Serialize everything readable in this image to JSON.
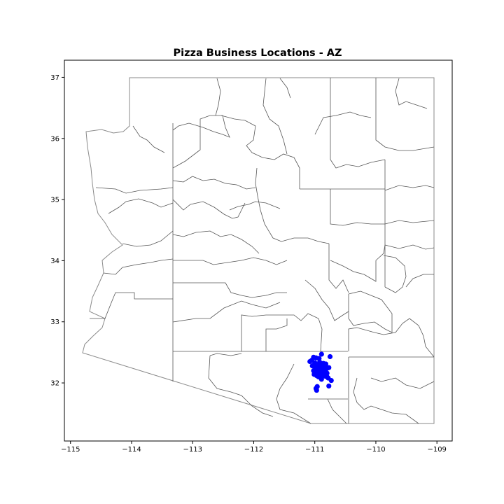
{
  "chart_data": {
    "type": "scatter",
    "title": "Pizza Business Locations - AZ",
    "xlabel": "",
    "ylabel": "",
    "xlim": [
      -115.1,
      -108.75
    ],
    "ylim": [
      31.05,
      37.28
    ],
    "x_ticks": [
      -115,
      -114,
      -113,
      -112,
      -111,
      -110,
      -109
    ],
    "x_tick_labels": [
      "−115",
      "−114",
      "−113",
      "−112",
      "−111",
      "−110",
      "−109"
    ],
    "y_ticks": [
      32,
      33,
      34,
      35,
      36,
      37
    ],
    "y_tick_labels": [
      "32",
      "33",
      "34",
      "35",
      "36",
      "37"
    ],
    "grid": false,
    "marker_color": "#0000ff",
    "boundary_color": "#555555",
    "series": [
      {
        "points": [
          [
            -111.02,
            32.42
          ],
          [
            -110.98,
            32.41
          ],
          [
            -110.93,
            32.4
          ],
          [
            -110.89,
            32.47
          ],
          [
            -110.75,
            32.43
          ],
          [
            -111.08,
            32.35
          ],
          [
            -111.05,
            32.37
          ],
          [
            -111.0,
            32.33
          ],
          [
            -110.97,
            32.3
          ],
          [
            -110.95,
            32.28
          ],
          [
            -110.92,
            32.29
          ],
          [
            -110.9,
            32.26
          ],
          [
            -110.87,
            32.27
          ],
          [
            -110.84,
            32.25
          ],
          [
            -110.8,
            32.24
          ],
          [
            -110.77,
            32.25
          ],
          [
            -110.99,
            32.25
          ],
          [
            -110.96,
            32.22
          ],
          [
            -110.93,
            32.21
          ],
          [
            -110.9,
            32.2
          ],
          [
            -110.87,
            32.19
          ],
          [
            -110.84,
            32.21
          ],
          [
            -110.82,
            32.18
          ],
          [
            -110.8,
            32.16
          ],
          [
            -110.98,
            32.18
          ],
          [
            -110.95,
            32.16
          ],
          [
            -110.92,
            32.14
          ],
          [
            -110.89,
            32.13
          ],
          [
            -110.86,
            32.12
          ],
          [
            -110.83,
            32.11
          ],
          [
            -110.8,
            32.1
          ],
          [
            -110.78,
            32.08
          ],
          [
            -111.01,
            32.14
          ],
          [
            -110.97,
            32.12
          ],
          [
            -110.94,
            32.1
          ],
          [
            -110.91,
            32.09
          ],
          [
            -110.89,
            32.06
          ],
          [
            -110.73,
            32.04
          ],
          [
            -110.77,
            31.95
          ],
          [
            -110.96,
            31.94
          ],
          [
            -110.98,
            31.91
          ],
          [
            -110.97,
            31.88
          ],
          [
            -111.02,
            32.2
          ],
          [
            -111.04,
            32.28
          ],
          [
            -110.86,
            32.32
          ],
          [
            -110.82,
            32.31
          ],
          [
            -110.92,
            32.34
          ],
          [
            -110.88,
            32.23
          ]
        ]
      }
    ]
  }
}
